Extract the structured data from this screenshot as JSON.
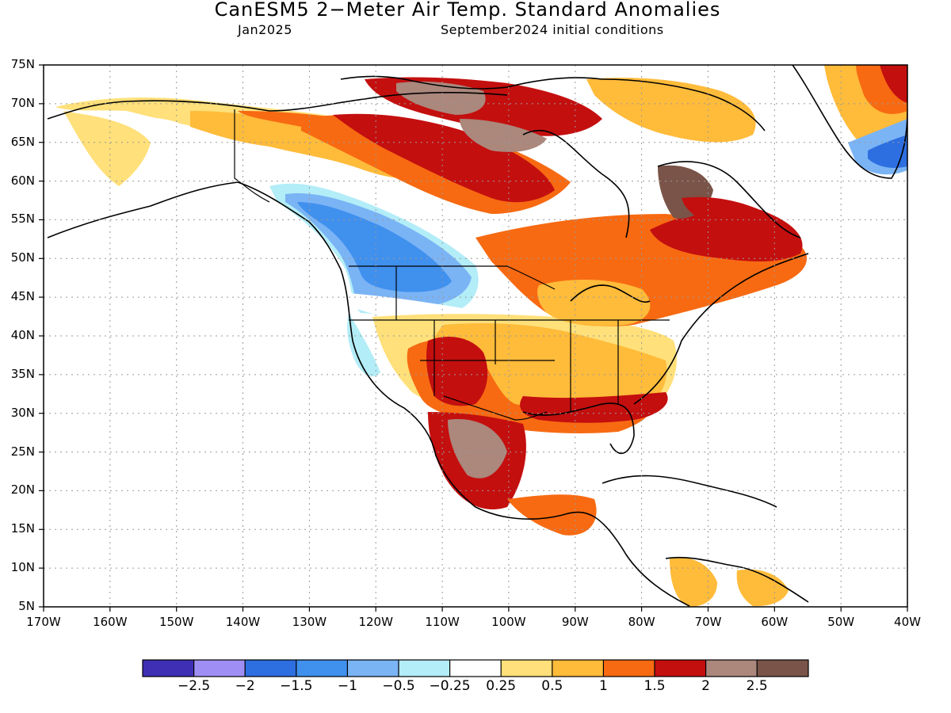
{
  "header": {
    "title": "CanESM5 2−Meter Air Temp. Standard Anomalies",
    "valid": "Jan2025",
    "init": "September2024 initial conditions"
  },
  "axes": {
    "lat_ticks": [
      "75N",
      "70N",
      "65N",
      "60N",
      "55N",
      "50N",
      "45N",
      "40N",
      "35N",
      "30N",
      "25N",
      "20N",
      "15N",
      "10N",
      "5N"
    ],
    "lon_ticks": [
      "170W",
      "160W",
      "150W",
      "140W",
      "130W",
      "120W",
      "110W",
      "100W",
      "90W",
      "80W",
      "70W",
      "60W",
      "50W",
      "40W"
    ]
  },
  "colorbar": {
    "colors": [
      "#3f2fb5",
      "#9f8ff5",
      "#2d6fe0",
      "#4090ee",
      "#7ab4f5",
      "#b3edf7",
      "#ffffff",
      "#ffe07a",
      "#ffbb3a",
      "#f76a12",
      "#c40f0f",
      "#ab877c",
      "#7a5448"
    ],
    "labels": [
      "−2.5",
      "−2",
      "−1.5",
      "−1",
      "−0.5",
      "−0.25",
      "0.25",
      "0.5",
      "1",
      "1.5",
      "2",
      "2.5"
    ]
  },
  "legend_colors": {
    "neg_strong": "#2d6fe0",
    "neg_mid": "#4090ee",
    "neg_weak": "#7ab4f5",
    "neg_light": "#b3edf7",
    "neutral": "#ffffff",
    "pos_light": "#ffe07a",
    "pos_weak": "#ffbb3a",
    "pos_mid": "#f76a12",
    "pos_strong": "#c40f0f",
    "pos_vstrong": "#ab877c",
    "pos_extreme": "#7a5448"
  }
}
